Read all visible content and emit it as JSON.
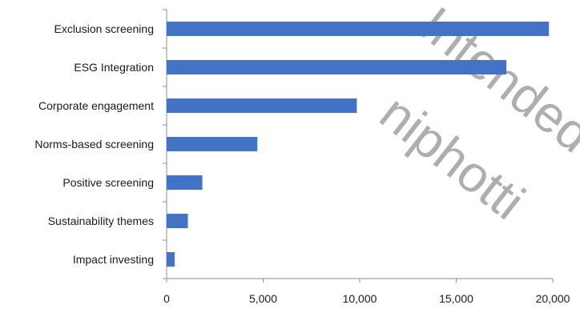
{
  "chart_data": {
    "type": "bar",
    "orientation": "horizontal",
    "categories": [
      "Exclusion screening",
      "ESG Integration",
      "Corporate engagement",
      "Norms-based screening",
      "Positive screening",
      "Sustainability themes",
      "Impact investing"
    ],
    "values": [
      19800,
      17600,
      9850,
      4700,
      1850,
      1100,
      420
    ],
    "xlim": [
      0,
      20000
    ],
    "xticks": [
      0,
      5000,
      10000,
      15000,
      20000
    ],
    "xtick_labels": [
      "0",
      "5,000",
      "10,000",
      "15,000",
      "20,000"
    ],
    "title": "",
    "xlabel": "",
    "ylabel": "",
    "grid": false,
    "legend": "none",
    "bar_color": "#4472c4",
    "axis_color": "#8c8c8c"
  }
}
